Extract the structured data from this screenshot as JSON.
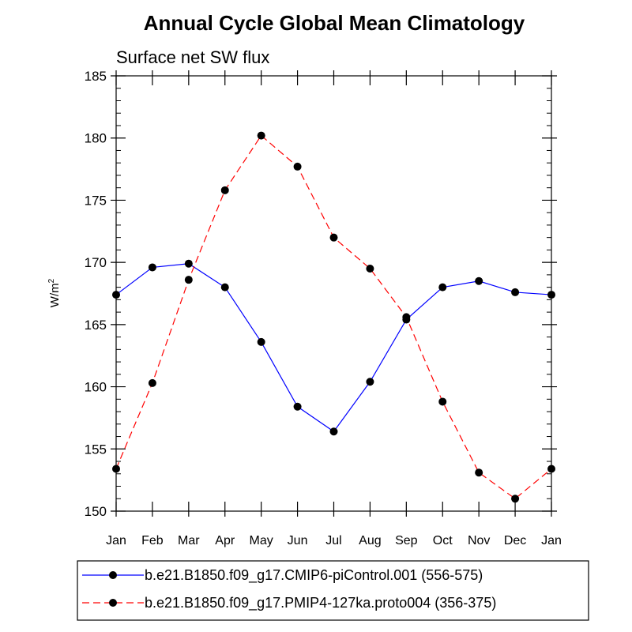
{
  "chart_data": {
    "type": "line",
    "title": "Annual Cycle Global Mean Climatology",
    "subtitle": "Surface net SW flux",
    "ylabel": "W/m",
    "ylabel_superscript": "2",
    "ylim": [
      150,
      185
    ],
    "yticks": [
      150,
      155,
      160,
      165,
      170,
      175,
      180,
      185
    ],
    "categories": [
      "Jan",
      "Feb",
      "Mar",
      "Apr",
      "May",
      "Jun",
      "Jul",
      "Aug",
      "Sep",
      "Oct",
      "Nov",
      "Dec",
      "Jan"
    ],
    "grid": false,
    "legend_position": "bottom",
    "series": [
      {
        "name": "b.e21.B1850.f09_g17.CMIP6-piControl.001 (556-575)",
        "color": "#0000ff",
        "dash": "solid",
        "values": [
          167.4,
          169.6,
          169.9,
          168.0,
          163.6,
          158.4,
          156.4,
          160.4,
          165.4,
          168.0,
          168.5,
          167.6,
          167.4
        ]
      },
      {
        "name": "b.e21.B1850.f09_g17.PMIP4-127ka.proto004 (356-375)",
        "color": "#ff0000",
        "dash": "dashed",
        "values": [
          153.4,
          160.3,
          168.6,
          175.8,
          180.2,
          177.7,
          172.0,
          169.5,
          165.6,
          158.8,
          153.1,
          151.0,
          153.4
        ]
      }
    ]
  }
}
